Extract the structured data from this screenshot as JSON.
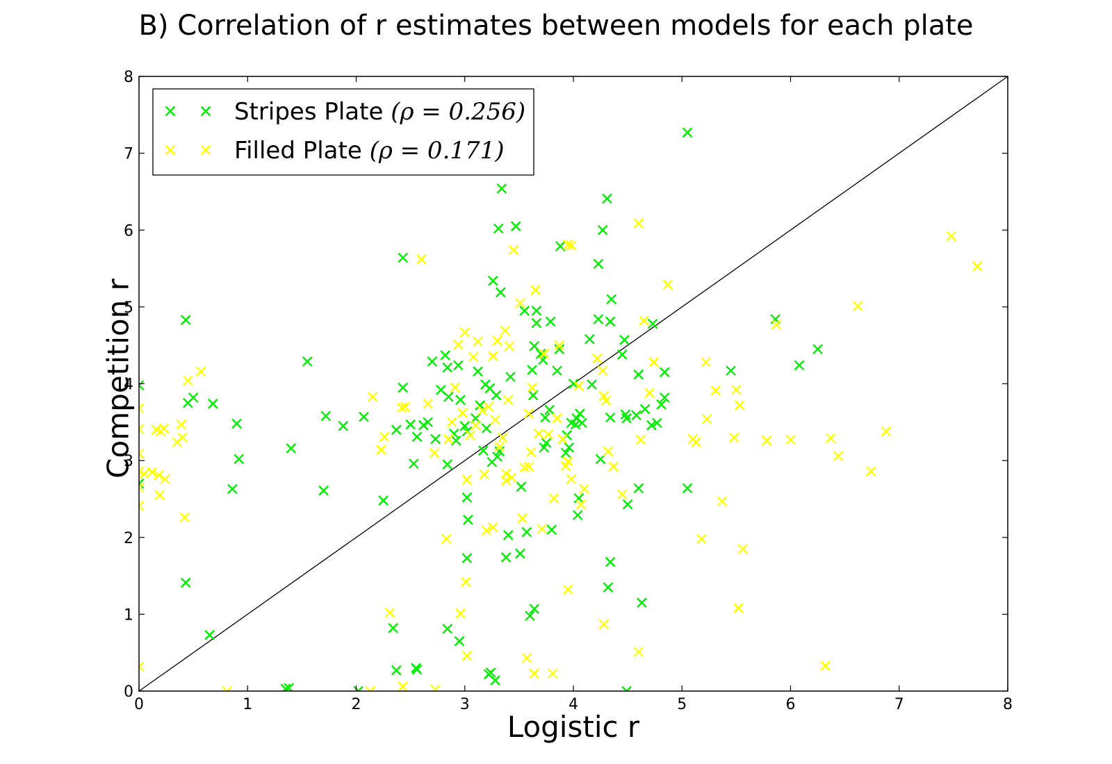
{
  "chart_data": {
    "type": "scatter",
    "title": "B) Correlation of r estimates between models for each plate",
    "xlabel": "Logistic r",
    "ylabel": "Competition r",
    "xlim": [
      0,
      8
    ],
    "ylim": [
      0,
      8
    ],
    "xticks": [
      0,
      1,
      2,
      3,
      4,
      5,
      6,
      7,
      8
    ],
    "yticks": [
      0,
      1,
      2,
      3,
      4,
      5,
      6,
      7,
      8
    ],
    "grid": false,
    "legend_position": "top-left",
    "marker": "x",
    "reference_line": {
      "type": "identity",
      "x": [
        0,
        8
      ],
      "y": [
        0,
        8
      ],
      "color": "#000000"
    },
    "series": [
      {
        "name": "Stripes Plate",
        "rho_label": "(ρ = 0.256)",
        "color": "#00ee00",
        "points": [
          [
            0.0,
            3.98
          ],
          [
            0.0,
            2.7
          ],
          [
            0.43,
            4.83
          ],
          [
            0.45,
            3.75
          ],
          [
            0.5,
            3.82
          ],
          [
            0.43,
            1.41
          ],
          [
            0.68,
            3.74
          ],
          [
            0.65,
            0.73
          ],
          [
            0.9,
            3.48
          ],
          [
            0.92,
            3.02
          ],
          [
            0.86,
            2.63
          ],
          [
            1.35,
            0.03
          ],
          [
            1.38,
            0.04
          ],
          [
            1.4,
            3.16
          ],
          [
            1.55,
            4.29
          ],
          [
            1.72,
            3.58
          ],
          [
            1.7,
            2.61
          ],
          [
            1.88,
            3.45
          ],
          [
            2.02,
            0.0
          ],
          [
            2.07,
            3.57
          ],
          [
            2.25,
            2.48
          ],
          [
            2.34,
            0.82
          ],
          [
            2.37,
            0.27
          ],
          [
            2.37,
            3.4
          ],
          [
            2.43,
            5.64
          ],
          [
            2.43,
            3.95
          ],
          [
            2.5,
            3.47
          ],
          [
            2.53,
            2.96
          ],
          [
            2.55,
            0.3
          ],
          [
            2.56,
            0.28
          ],
          [
            2.56,
            3.31
          ],
          [
            2.62,
            3.46
          ],
          [
            2.66,
            3.5
          ],
          [
            2.7,
            4.29
          ],
          [
            2.73,
            3.28
          ],
          [
            2.78,
            3.92
          ],
          [
            2.82,
            4.37
          ],
          [
            2.84,
            4.21
          ],
          [
            2.84,
            2.95
          ],
          [
            2.85,
            3.83
          ],
          [
            2.84,
            0.81
          ],
          [
            2.9,
            3.35
          ],
          [
            2.92,
            3.26
          ],
          [
            2.94,
            4.24
          ],
          [
            2.96,
            3.79
          ],
          [
            2.95,
            0.65
          ],
          [
            3.0,
            3.45
          ],
          [
            3.02,
            3.38
          ],
          [
            3.02,
            2.52
          ],
          [
            3.03,
            2.23
          ],
          [
            3.02,
            1.73
          ],
          [
            3.1,
            3.55
          ],
          [
            3.12,
            4.16
          ],
          [
            3.14,
            3.72
          ],
          [
            3.17,
            3.13
          ],
          [
            3.19,
            3.99
          ],
          [
            3.2,
            3.42
          ],
          [
            3.22,
            0.22
          ],
          [
            3.24,
            0.24
          ],
          [
            3.25,
            2.98
          ],
          [
            3.23,
            3.94
          ],
          [
            3.26,
            5.34
          ],
          [
            3.29,
            3.85
          ],
          [
            3.28,
            0.14
          ],
          [
            3.3,
            3.05
          ],
          [
            3.31,
            6.02
          ],
          [
            3.32,
            3.12
          ],
          [
            3.33,
            5.19
          ],
          [
            3.34,
            6.54
          ],
          [
            3.38,
            1.74
          ],
          [
            3.4,
            2.03
          ],
          [
            3.42,
            4.09
          ],
          [
            3.47,
            6.05
          ],
          [
            3.51,
            1.79
          ],
          [
            3.52,
            2.66
          ],
          [
            3.55,
            4.95
          ],
          [
            3.57,
            2.07
          ],
          [
            3.6,
            0.98
          ],
          [
            3.62,
            4.18
          ],
          [
            3.64,
            1.07
          ],
          [
            3.63,
            3.85
          ],
          [
            3.64,
            4.49
          ],
          [
            3.66,
            4.79
          ],
          [
            3.66,
            4.95
          ],
          [
            3.7,
            4.39
          ],
          [
            3.72,
            4.31
          ],
          [
            3.73,
            3.17
          ],
          [
            3.75,
            3.23
          ],
          [
            3.74,
            3.56
          ],
          [
            3.78,
            3.66
          ],
          [
            3.8,
            2.1
          ],
          [
            3.79,
            4.81
          ],
          [
            3.85,
            4.17
          ],
          [
            3.87,
            4.45
          ],
          [
            3.88,
            5.79
          ],
          [
            3.93,
            3.1
          ],
          [
            3.94,
            3.33
          ],
          [
            3.96,
            3.17
          ],
          [
            3.98,
            3.49
          ],
          [
            4.0,
            4.0
          ],
          [
            4.02,
            3.47
          ],
          [
            4.03,
            3.55
          ],
          [
            4.04,
            2.29
          ],
          [
            4.05,
            2.51
          ],
          [
            4.06,
            3.61
          ],
          [
            4.08,
            3.49
          ],
          [
            4.15,
            4.58
          ],
          [
            4.17,
            3.99
          ],
          [
            4.23,
            5.56
          ],
          [
            4.23,
            4.84
          ],
          [
            4.25,
            3.02
          ],
          [
            4.27,
            6.0
          ],
          [
            4.31,
            6.41
          ],
          [
            4.32,
            1.35
          ],
          [
            4.34,
            1.68
          ],
          [
            4.34,
            3.56
          ],
          [
            4.34,
            4.81
          ],
          [
            4.35,
            5.1
          ],
          [
            4.45,
            4.38
          ],
          [
            4.47,
            4.57
          ],
          [
            4.48,
            3.6
          ],
          [
            4.49,
            0.0
          ],
          [
            4.5,
            2.43
          ],
          [
            4.49,
            3.55
          ],
          [
            4.58,
            3.59
          ],
          [
            4.6,
            4.12
          ],
          [
            4.6,
            2.64
          ],
          [
            4.63,
            1.15
          ],
          [
            4.66,
            3.67
          ],
          [
            4.72,
            3.46
          ],
          [
            4.73,
            4.78
          ],
          [
            4.77,
            3.49
          ],
          [
            4.81,
            3.73
          ],
          [
            4.84,
            3.82
          ],
          [
            4.84,
            4.15
          ],
          [
            5.05,
            2.64
          ],
          [
            5.05,
            7.27
          ],
          [
            5.45,
            4.17
          ],
          [
            5.86,
            4.84
          ],
          [
            6.08,
            4.24
          ],
          [
            6.25,
            4.45
          ]
        ]
      },
      {
        "name": "Filled Plate",
        "rho_label": "(ρ = 0.171)",
        "color": "#ffff00",
        "points": [
          [
            0.0,
            3.68
          ],
          [
            0.0,
            3.41
          ],
          [
            0.0,
            3.09
          ],
          [
            0.0,
            2.86
          ],
          [
            0.0,
            2.65
          ],
          [
            0.0,
            2.41
          ],
          [
            0.0,
            0.32
          ],
          [
            0.05,
            2.83
          ],
          [
            0.12,
            2.85
          ],
          [
            0.16,
            3.4
          ],
          [
            0.18,
            2.81
          ],
          [
            0.19,
            2.55
          ],
          [
            0.2,
            3.38
          ],
          [
            0.23,
            3.42
          ],
          [
            0.24,
            2.76
          ],
          [
            0.35,
            3.24
          ],
          [
            0.39,
            3.47
          ],
          [
            0.4,
            3.3
          ],
          [
            0.42,
            2.26
          ],
          [
            0.45,
            4.04
          ],
          [
            0.57,
            4.16
          ],
          [
            0.81,
            0.0
          ],
          [
            2.13,
            0.0
          ],
          [
            2.15,
            3.83
          ],
          [
            2.23,
            3.14
          ],
          [
            2.26,
            3.31
          ],
          [
            2.31,
            1.02
          ],
          [
            2.42,
            3.69
          ],
          [
            2.43,
            0.06
          ],
          [
            2.45,
            3.7
          ],
          [
            2.6,
            5.62
          ],
          [
            2.66,
            3.74
          ],
          [
            2.72,
            3.1
          ],
          [
            2.73,
            0.02
          ],
          [
            2.83,
            1.98
          ],
          [
            2.85,
            3.28
          ],
          [
            2.88,
            3.5
          ],
          [
            2.91,
            3.95
          ],
          [
            2.94,
            4.51
          ],
          [
            2.96,
            1.01
          ],
          [
            2.98,
            3.62
          ],
          [
            3.0,
            4.67
          ],
          [
            3.01,
            1.42
          ],
          [
            3.02,
            0.46
          ],
          [
            3.02,
            2.75
          ],
          [
            3.05,
            3.33
          ],
          [
            3.08,
            4.35
          ],
          [
            3.1,
            3.46
          ],
          [
            3.12,
            4.55
          ],
          [
            3.16,
            3.65
          ],
          [
            3.18,
            2.82
          ],
          [
            3.2,
            2.09
          ],
          [
            3.22,
            3.7
          ],
          [
            3.26,
            2.13
          ],
          [
            3.26,
            4.36
          ],
          [
            3.28,
            3.53
          ],
          [
            3.3,
            4.56
          ],
          [
            3.32,
            3.18
          ],
          [
            3.35,
            3.3
          ],
          [
            3.37,
            4.69
          ],
          [
            3.38,
            2.83
          ],
          [
            3.38,
            2.74
          ],
          [
            3.4,
            3.79
          ],
          [
            3.41,
            4.49
          ],
          [
            3.43,
            2.78
          ],
          [
            3.45,
            5.74
          ],
          [
            3.51,
            5.05
          ],
          [
            3.53,
            2.25
          ],
          [
            3.55,
            2.91
          ],
          [
            3.57,
            0.43
          ],
          [
            3.59,
            3.61
          ],
          [
            3.59,
            2.92
          ],
          [
            3.61,
            3.11
          ],
          [
            3.62,
            3.95
          ],
          [
            3.64,
            0.23
          ],
          [
            3.65,
            5.22
          ],
          [
            3.68,
            3.35
          ],
          [
            3.71,
            2.11
          ],
          [
            3.73,
            4.39
          ],
          [
            3.77,
            3.34
          ],
          [
            3.81,
            0.23
          ],
          [
            3.82,
            2.51
          ],
          [
            3.85,
            3.55
          ],
          [
            3.87,
            4.5
          ],
          [
            3.9,
            3.28
          ],
          [
            3.93,
            2.93
          ],
          [
            3.95,
            2.99
          ],
          [
            3.95,
            5.81
          ],
          [
            3.98,
            5.8
          ],
          [
            3.95,
            1.32
          ],
          [
            3.98,
            2.76
          ],
          [
            4.05,
            3.97
          ],
          [
            4.07,
            2.43
          ],
          [
            4.1,
            2.63
          ],
          [
            4.22,
            4.33
          ],
          [
            4.27,
            4.17
          ],
          [
            4.28,
            3.84
          ],
          [
            4.3,
            3.78
          ],
          [
            4.28,
            0.87
          ],
          [
            4.32,
            3.12
          ],
          [
            4.37,
            2.92
          ],
          [
            4.45,
            2.56
          ],
          [
            4.6,
            0.51
          ],
          [
            4.6,
            6.09
          ],
          [
            4.62,
            3.27
          ],
          [
            4.65,
            4.82
          ],
          [
            4.7,
            3.88
          ],
          [
            4.74,
            4.28
          ],
          [
            4.87,
            5.29
          ],
          [
            5.1,
            3.28
          ],
          [
            5.13,
            3.24
          ],
          [
            5.18,
            1.98
          ],
          [
            5.22,
            4.28
          ],
          [
            5.23,
            3.54
          ],
          [
            5.31,
            3.91
          ],
          [
            5.37,
            2.47
          ],
          [
            5.48,
            3.3
          ],
          [
            5.5,
            3.92
          ],
          [
            5.52,
            1.08
          ],
          [
            5.53,
            3.72
          ],
          [
            5.56,
            1.85
          ],
          [
            5.78,
            3.26
          ],
          [
            5.87,
            4.77
          ],
          [
            6.0,
            3.27
          ],
          [
            6.32,
            0.33
          ],
          [
            6.37,
            3.29
          ],
          [
            6.44,
            3.06
          ],
          [
            6.62,
            5.01
          ],
          [
            6.74,
            2.86
          ],
          [
            6.88,
            3.38
          ],
          [
            7.48,
            5.92
          ],
          [
            7.72,
            5.53
          ]
        ]
      }
    ]
  }
}
